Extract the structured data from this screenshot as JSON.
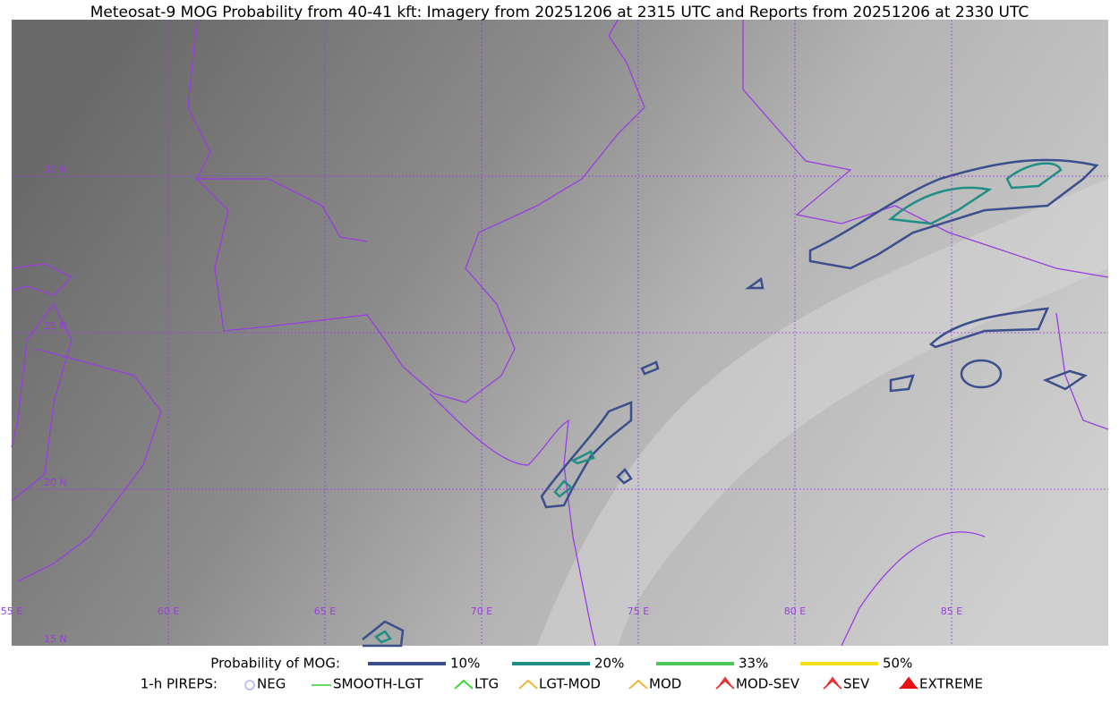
{
  "title": "Meteosat-9 MOG Probability from 40-41 kft: Imagery from 20251206 at 2315 UTC and Reports from 20251206 at 2330 UTC",
  "map": {
    "lat_labels": [
      "30 N",
      "25 N",
      "20 N",
      "15 N"
    ],
    "lon_labels": [
      "55 E",
      "60 E",
      "65 E",
      "70 E",
      "75 E",
      "80 E",
      "85 E"
    ]
  },
  "legend": {
    "probability_label": "Probability of MOG:",
    "levels": [
      {
        "label": "10%",
        "color": "#3a4f8c"
      },
      {
        "label": "20%",
        "color": "#1f8f85"
      },
      {
        "label": "33%",
        "color": "#4cc75a"
      },
      {
        "label": "50%",
        "color": "#f2e01a"
      }
    ],
    "pireps_label": "1-h PIREPS:",
    "pireps": [
      {
        "label": "NEG",
        "color": "#b0b0ff"
      },
      {
        "label": "SMOOTH-LGT",
        "color": "#33cc33"
      },
      {
        "label": "LTG",
        "color": "#22dd22"
      },
      {
        "label": "LGT-MOD",
        "color": "#f0b020"
      },
      {
        "label": "MOD",
        "color": "#f0b020"
      },
      {
        "label": "MOD-SEV",
        "color": "#e83030"
      },
      {
        "label": "SEV",
        "color": "#e83030"
      },
      {
        "label": "EXTREME",
        "color": "#e81010"
      }
    ]
  }
}
